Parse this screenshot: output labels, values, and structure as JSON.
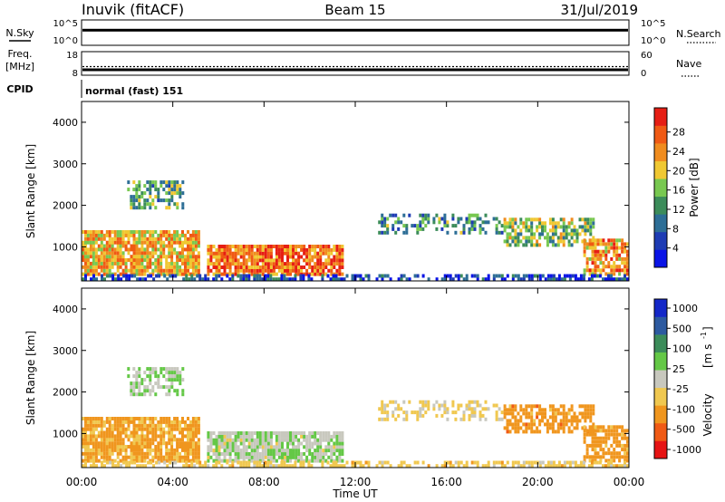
{
  "header": {
    "station": "Inuvik (fitACF)",
    "beam": "Beam 15",
    "date": "31/Jul/2019"
  },
  "noise_panel": {
    "left_label": "N.Sky",
    "right_label": "N.Search",
    "left_ticks": [
      "10^5",
      "10^0"
    ],
    "right_ticks": [
      "10^5",
      "10^0"
    ],
    "trace_level_fraction": 0.35
  },
  "freq_panel": {
    "left_label_line1": "Freq.",
    "left_label_line2": "[MHz]",
    "right_label": "Nave",
    "left_ticks": [
      "18",
      "8"
    ],
    "right_ticks": [
      "60",
      "0"
    ],
    "freq_mhz": 10.5,
    "nave": 22
  },
  "cpid": {
    "label": "CPID",
    "value": "normal (fast) 151"
  },
  "x_axis": {
    "title": "Time UT",
    "ticks": [
      "00:00",
      "04:00",
      "08:00",
      "12:00",
      "16:00",
      "20:00",
      "00:00"
    ]
  },
  "y_axis": {
    "title": "Slant Range [km]",
    "ticks": [
      "1000",
      "2000",
      "3000",
      "4000"
    ]
  },
  "colors": {
    "power": [
      "#0a14e6",
      "#1e3cb4",
      "#2d6e96",
      "#3c8c5a",
      "#78c850",
      "#f0c832",
      "#f08c1e",
      "#f05a14",
      "#e61e14"
    ],
    "velocity": [
      "#e61414",
      "#f05a14",
      "#f0961e",
      "#f0c850",
      "#c8c8be",
      "#64c846",
      "#3c8c5a",
      "#2d5aa0",
      "#1428c8"
    ]
  },
  "power_colorbar": {
    "title": "Power [dB]",
    "ticks": [
      "4",
      "8",
      "12",
      "16",
      "20",
      "24",
      "28"
    ]
  },
  "velocity_colorbar": {
    "title": "Velocity",
    "unit": "[m s",
    "unit_exp": "-1",
    "unit_close": "]",
    "ticks": [
      "1000",
      "500",
      "100",
      "25",
      "-25",
      "-100",
      "-500",
      "-1000"
    ]
  },
  "chart_data": {
    "type": "heatmap",
    "x_range_hours": [
      0,
      24
    ],
    "y_range_km": [
      180,
      4500
    ],
    "power_range_db": [
      0,
      33
    ],
    "velocity_range_ms": [
      -1200,
      1200
    ],
    "echo_regions": [
      {
        "t0": 0.0,
        "t1": 5.2,
        "r0": 300,
        "r1": 1400,
        "power_db": 22,
        "velocity_ms": -150,
        "density": 0.85
      },
      {
        "t0": 5.5,
        "t1": 11.5,
        "r0": 300,
        "r1": 1050,
        "power_db": 26,
        "velocity_ms": 10,
        "density": 0.9
      },
      {
        "t0": 2.0,
        "t1": 4.5,
        "r0": 1900,
        "r1": 2600,
        "power_db": 14,
        "velocity_ms": 20,
        "density": 0.55
      },
      {
        "t0": 13.0,
        "t1": 18.5,
        "r0": 1300,
        "r1": 1800,
        "power_db": 12,
        "velocity_ms": -40,
        "density": 0.45
      },
      {
        "t0": 18.5,
        "t1": 22.5,
        "r0": 1000,
        "r1": 1700,
        "power_db": 16,
        "velocity_ms": -300,
        "density": 0.65
      },
      {
        "t0": 22.0,
        "t1": 24.0,
        "r0": 300,
        "r1": 1200,
        "power_db": 24,
        "velocity_ms": -250,
        "density": 0.75
      },
      {
        "t0": 0.0,
        "t1": 24.0,
        "r0": 180,
        "r1": 340,
        "power_db": 6,
        "velocity_ms": -60,
        "density": 0.55
      }
    ]
  }
}
